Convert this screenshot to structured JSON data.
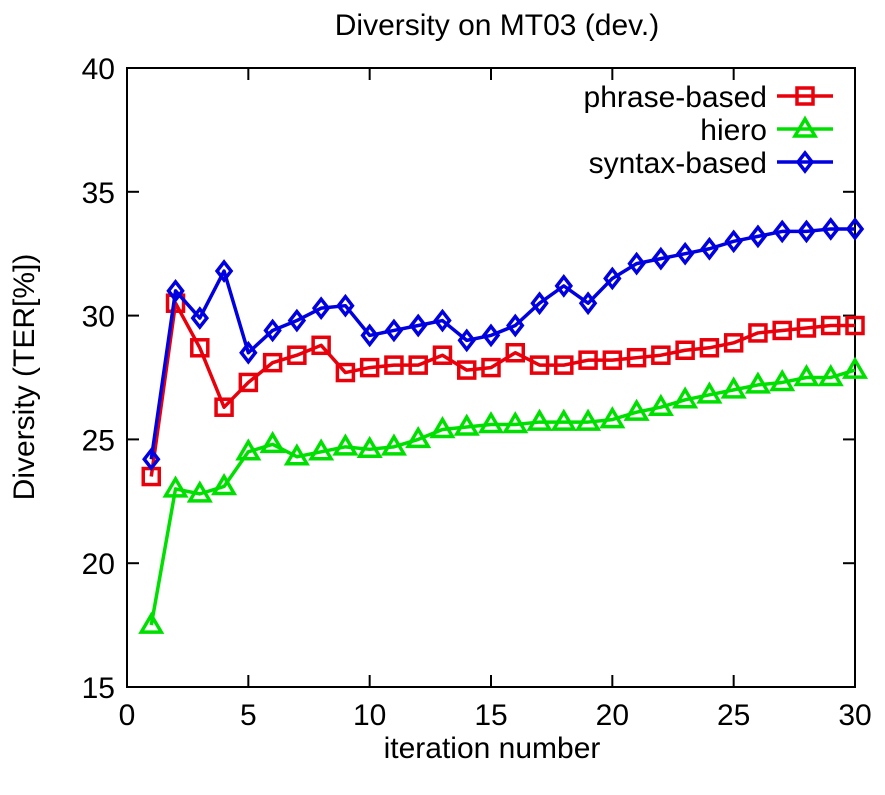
{
  "chart_data": {
    "type": "line",
    "title": "Diversity on MT03 (dev.)",
    "xlabel": "iteration number",
    "ylabel": "Diversity (TER[%])",
    "xlim": [
      0,
      30
    ],
    "ylim": [
      15,
      40
    ],
    "xticks": [
      "0",
      "5",
      "10",
      "15",
      "20",
      "25",
      "30"
    ],
    "yticks": [
      "15",
      "20",
      "25",
      "30",
      "35",
      "40"
    ],
    "grid": false,
    "legend_position": "top-right",
    "x": [
      1,
      2,
      3,
      4,
      5,
      6,
      7,
      8,
      9,
      10,
      11,
      12,
      13,
      14,
      15,
      16,
      17,
      18,
      19,
      20,
      21,
      22,
      23,
      24,
      25,
      26,
      27,
      28,
      29,
      30
    ],
    "series": [
      {
        "name": "phrase-based",
        "color": "#e8000b",
        "marker": "square",
        "values": [
          23.5,
          30.5,
          28.7,
          26.3,
          27.3,
          28.1,
          28.4,
          28.8,
          27.7,
          27.9,
          28.0,
          28.0,
          28.4,
          27.8,
          27.9,
          28.5,
          28.0,
          28.0,
          28.2,
          28.2,
          28.3,
          28.4,
          28.6,
          28.7,
          28.9,
          29.3,
          29.4,
          29.5,
          29.6,
          29.6
        ]
      },
      {
        "name": "hiero",
        "color": "#00e000",
        "marker": "triangle",
        "values": [
          17.5,
          23.0,
          22.8,
          23.1,
          24.5,
          24.8,
          24.3,
          24.5,
          24.7,
          24.6,
          24.7,
          25.0,
          25.4,
          25.5,
          25.6,
          25.6,
          25.7,
          25.7,
          25.7,
          25.8,
          26.1,
          26.3,
          26.6,
          26.8,
          27.0,
          27.2,
          27.3,
          27.5,
          27.5,
          27.8
        ]
      },
      {
        "name": "syntax-based",
        "color": "#0000e0",
        "marker": "diamond",
        "values": [
          24.2,
          31.0,
          29.9,
          31.8,
          28.5,
          29.4,
          29.8,
          30.3,
          30.4,
          29.2,
          29.4,
          29.6,
          29.8,
          29.0,
          29.2,
          29.6,
          30.5,
          31.2,
          30.5,
          31.5,
          32.1,
          32.3,
          32.5,
          32.7,
          33.0,
          33.2,
          33.4,
          33.4,
          33.5,
          33.5
        ]
      }
    ]
  }
}
